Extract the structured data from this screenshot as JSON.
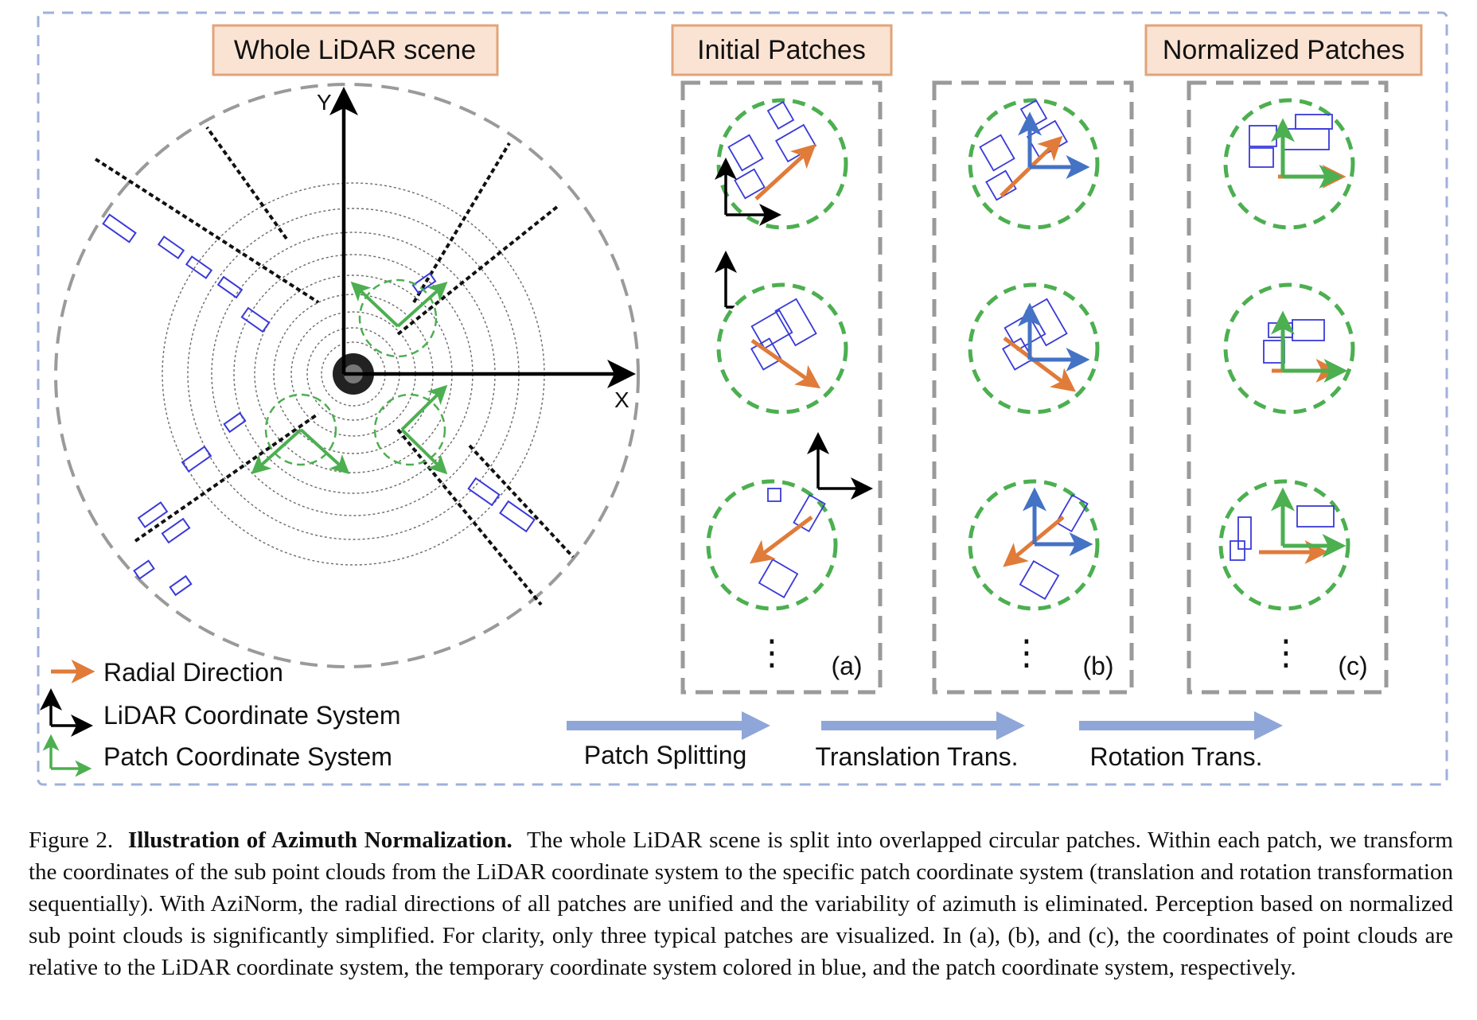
{
  "figure": {
    "header_whole": "Whole LiDAR scene",
    "header_initial": "Initial Patches",
    "header_normalized": "Normalized Patches",
    "axis_y": "Y",
    "axis_x": "X",
    "panel_labels": [
      "(a)",
      "(b)",
      "(c)"
    ],
    "ellipsis": "⋮",
    "legend": [
      {
        "label": "Radial Direction",
        "color": "#e07b39"
      },
      {
        "label": "LiDAR Coordinate System",
        "color": "#000000"
      },
      {
        "label": "Patch Coordinate System",
        "color": "#4caf50"
      }
    ],
    "steps": [
      "Patch Splitting",
      "Translation Trans.",
      "Rotation Trans."
    ],
    "colors": {
      "frame": "#9fb0db",
      "header_bg": "#fbe3d3",
      "header_border": "#e0a47a",
      "radial": "#e07b39",
      "patch": "#4caf50",
      "temp": "#4472c4",
      "lidar": "#000000",
      "box": "#3a3ad8",
      "step_arrow": "#8fa6d8",
      "gray_dash": "#9a9a9a"
    }
  },
  "caption": {
    "figure_number": "Figure 2.",
    "title": "Illustration of Azimuth Normalization.",
    "text": "The whole LiDAR scene is split into overlapped circular patches. Within each patch, we transform the coordinates of the sub point clouds from the LiDAR coordinate system to the specific patch coordinate system (translation and rotation transformation sequentially). With AziNorm, the radial directions of all patches are unified and the variability of azimuth is eliminated. Perception based on normalized sub point clouds is significantly simplified. For clarity, only three typical patches are visualized. In (a), (b), and (c), the coordinates of point clouds are relative to the LiDAR coordinate system, the temporary coordinate system colored in blue, and the patch coordinate system, respectively."
  }
}
